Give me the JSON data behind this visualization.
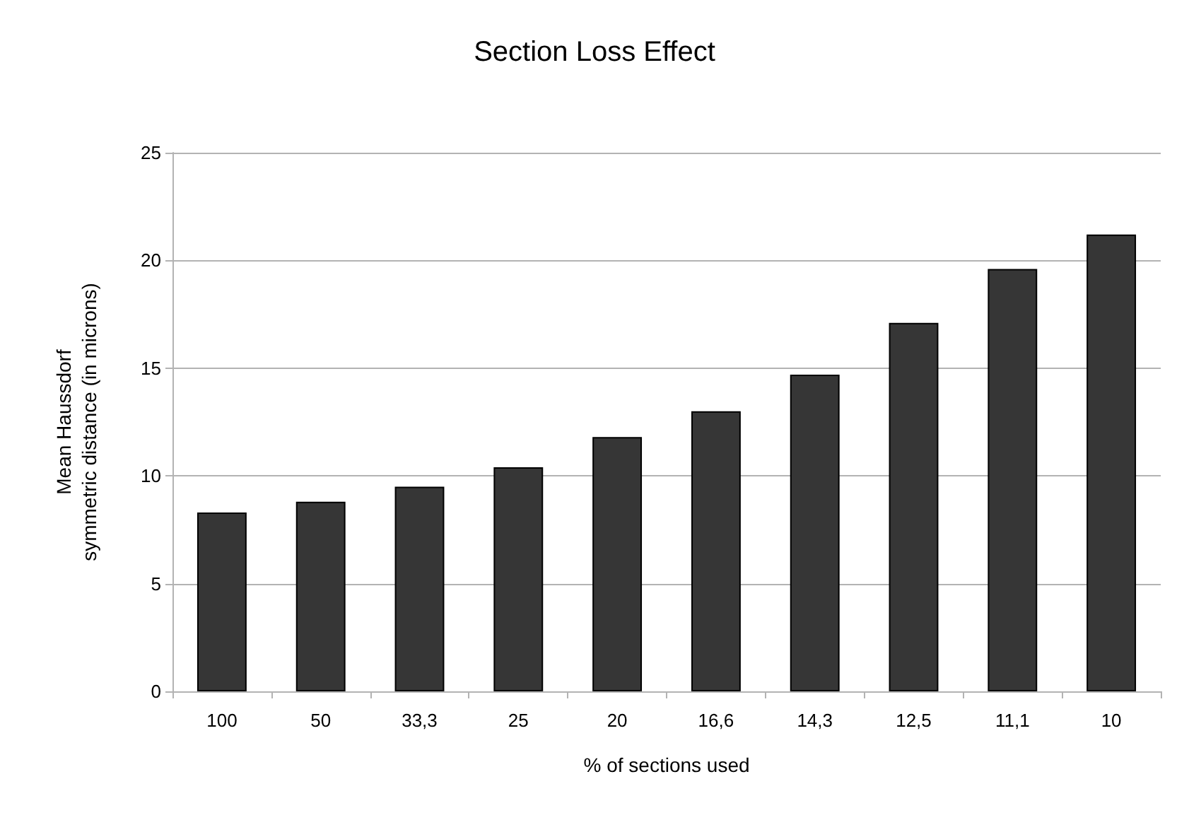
{
  "chart_data": {
    "type": "bar",
    "title": "Section Loss Effect",
    "xlabel": "% of sections used",
    "ylabel": "Mean Haussdorf\nsymmetric distance (in microns)",
    "categories": [
      "100",
      "50",
      "33,3",
      "25",
      "20",
      "16,6",
      "14,3",
      "12,5",
      "11,1",
      "10"
    ],
    "values": [
      8.3,
      8.8,
      9.5,
      10.4,
      11.8,
      13.0,
      14.7,
      17.1,
      19.6,
      21.2
    ],
    "color": "#363636",
    "ylim": [
      0,
      25
    ],
    "yticks": [
      0,
      5,
      10,
      15,
      20,
      25
    ],
    "grid": "y"
  }
}
